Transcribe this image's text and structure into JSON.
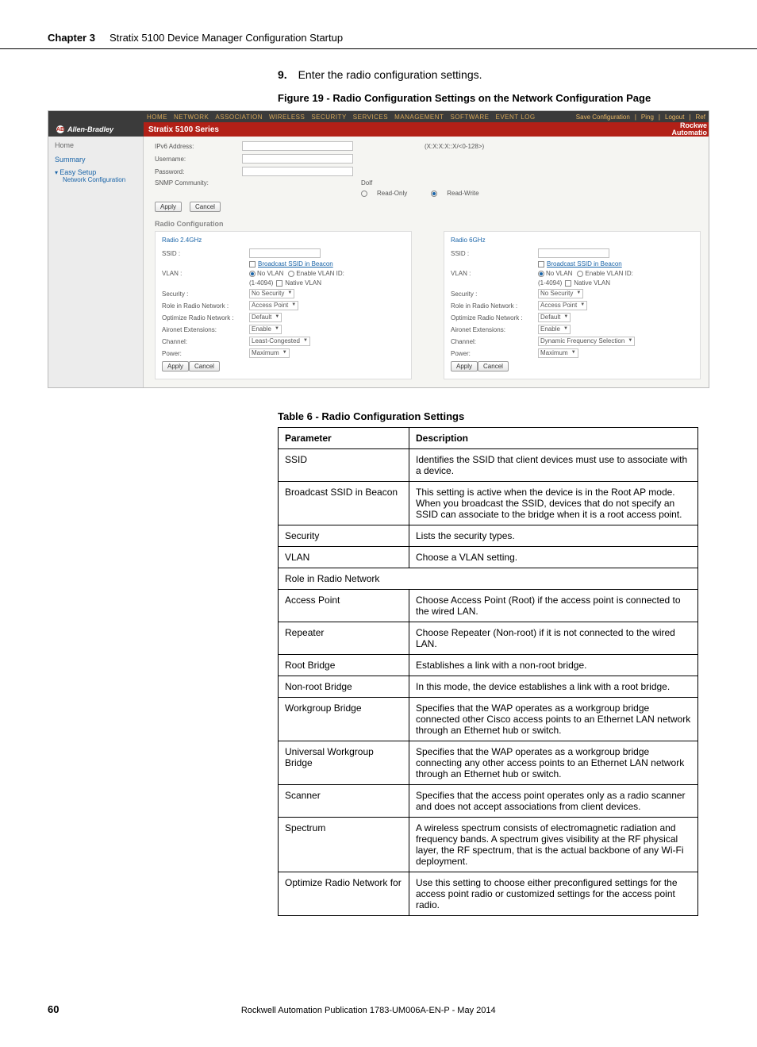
{
  "header": {
    "chapter": "Chapter 3",
    "title": "Stratix 5100 Device Manager Configuration Startup"
  },
  "step": {
    "num": "9.",
    "text": "Enter the radio configuration settings."
  },
  "figure_caption": "Figure 19 - Radio Configuration Settings on the Network Configuration Page",
  "screenshot": {
    "nav": [
      "HOME",
      "NETWORK",
      "ASSOCIATION",
      "WIRELESS",
      "SECURITY",
      "SERVICES",
      "MANAGEMENT",
      "SOFTWARE",
      "EVENT LOG"
    ],
    "toplinks": [
      "Save Configuration",
      "Ping",
      "Logout",
      "Ref"
    ],
    "brand": "Allen-Bradley",
    "series": "Stratix 5100 Series",
    "rockwell1": "Rockwe",
    "rockwell2": "Automatio",
    "sidebar": {
      "home": "Home",
      "summary": "Summary",
      "easy": "Easy Setup",
      "sub": "Network Configuration"
    },
    "form": {
      "ipv6": "IPv6 Address:",
      "ipv6hint": "(X:X:X:X::X/<0-128>)",
      "username": "Username:",
      "password": "Password:",
      "snmp": "SNMP Community:",
      "snmp_val": "Dolf",
      "ro": "Read-Only",
      "rw": "Read-Write",
      "apply": "Apply",
      "cancel": "Cancel"
    },
    "radio_section": "Radio Configuration",
    "panels": {
      "left_title": "Radio 2.4GHz",
      "right_title": "Radio 6GHz",
      "ssid": "SSID :",
      "broadcast": "Broadcast SSID in Beacon",
      "vlan": "VLAN :",
      "novlan": "No VLAN",
      "enablevlan": "Enable VLAN ID:",
      "vlanrange": "(1-4094)",
      "nativevlan": "Native VLAN",
      "security": "Security :",
      "nosec": "No Security",
      "role": "Role in Radio Network :",
      "ap": "Access Point",
      "optimize": "Optimize Radio Network :",
      "def": "Default",
      "aironet": "Aironet Extensions:",
      "enable": "Enable",
      "channel": "Channel:",
      "least": "Least-Congested",
      "dyn": "Dynamic Frequency Selection",
      "power": "Power:",
      "max": "Maximum",
      "apply": "Apply",
      "cancel": "Cancel"
    }
  },
  "table_caption": "Table 6 - Radio Configuration Settings",
  "table": {
    "head": {
      "param": "Parameter",
      "desc": "Description"
    },
    "rows": [
      {
        "p": "SSID",
        "d": "Identifies the SSID that client devices must use to associate with a device."
      },
      {
        "p": "Broadcast SSID in Beacon",
        "d": "This setting is active when the device is in the Root AP mode. When you broadcast the SSID, devices that do not specify an SSID can associate to the bridge when it is a root access point."
      },
      {
        "p": "Security",
        "d": "Lists the security types."
      },
      {
        "p": "VLAN",
        "d": "Choose a VLAN setting."
      },
      {
        "p": "Role in Radio Network",
        "d": ""
      },
      {
        "p": "Access Point",
        "d": "Choose Access Point (Root) if the access point is connected to the wired LAN."
      },
      {
        "p": "Repeater",
        "d": "Choose Repeater (Non-root) if it is not connected to the wired LAN."
      },
      {
        "p": "Root Bridge",
        "d": "Establishes a link with a non-root bridge."
      },
      {
        "p": "Non-root Bridge",
        "d": "In this mode, the device establishes a link with a root bridge."
      },
      {
        "p": "Workgroup Bridge",
        "d": "Specifies that the WAP operates as a workgroup bridge connected other Cisco access points to an Ethernet LAN network through an Ethernet hub or switch."
      },
      {
        "p": "Universal Workgroup Bridge",
        "d": "Specifies that the WAP operates as a workgroup bridge connecting any other access points to an Ethernet LAN network through an Ethernet hub or switch."
      },
      {
        "p": "Scanner",
        "d": "Specifies that the access point operates only as a radio scanner and does not accept associations from client devices."
      },
      {
        "p": "Spectrum",
        "d": "A wireless spectrum consists of electromagnetic radiation and frequency bands. A spectrum gives visibility at the RF physical layer, the RF spectrum, that is the actual backbone of any Wi-Fi deployment."
      },
      {
        "p": "Optimize Radio Network for",
        "d": "Use this setting to choose either preconfigured settings for the access point radio or customized settings for the access point radio."
      }
    ]
  },
  "footer": {
    "page": "60",
    "pub": "Rockwell Automation Publication 1783-UM006A-EN-P - May 2014"
  }
}
